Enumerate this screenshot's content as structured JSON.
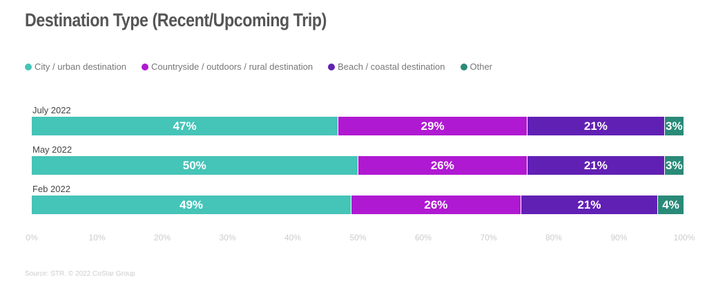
{
  "chart_data": {
    "type": "bar",
    "orientation": "horizontal-stacked",
    "title": "Destination Type (Recent/Upcoming Trip)",
    "categories": [
      "July 2022",
      "May 2022",
      "Feb 2022"
    ],
    "series": [
      {
        "name": "City / urban destination",
        "color": "#45c4b8",
        "values": [
          47,
          50,
          49
        ]
      },
      {
        "name": "Countryside / outdoors / rural destination",
        "color": "#b019d2",
        "values": [
          29,
          26,
          26
        ]
      },
      {
        "name": "Beach / coastal destination",
        "color": "#6120b4",
        "values": [
          21,
          21,
          21
        ]
      },
      {
        "name": "Other",
        "color": "#2a8a78",
        "values": [
          3,
          3,
          4
        ]
      }
    ],
    "xlim": [
      0,
      100
    ],
    "xticks": [
      "0%",
      "10%",
      "20%",
      "30%",
      "40%",
      "50%",
      "60%",
      "70%",
      "80%",
      "90%",
      "100%"
    ],
    "legend": "top-left",
    "source": "Source: STR. © 2022 CoStar Group"
  }
}
